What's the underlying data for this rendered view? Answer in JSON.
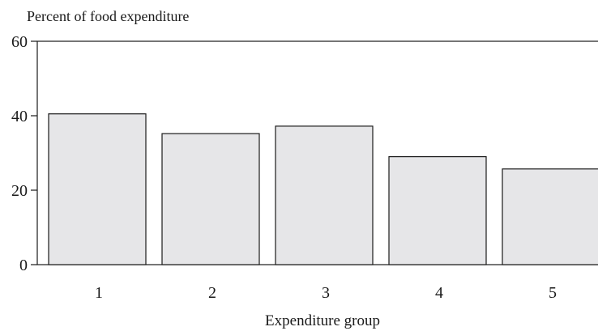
{
  "chart_data": {
    "type": "bar",
    "ylabel": "Percent of food expenditure",
    "xlabel": "Expenditure group",
    "categories": [
      "1",
      "2",
      "3",
      "4",
      "5"
    ],
    "values": [
      40.5,
      35.2,
      37.2,
      29,
      25.7
    ],
    "ylim": [
      0,
      60
    ],
    "yticks": [
      0,
      20,
      40,
      60
    ],
    "grid": false,
    "colors": {
      "bar_fill": "#e6e6e8",
      "bar_stroke": "#1a1a1a",
      "axis": "#1a1a1a"
    }
  }
}
